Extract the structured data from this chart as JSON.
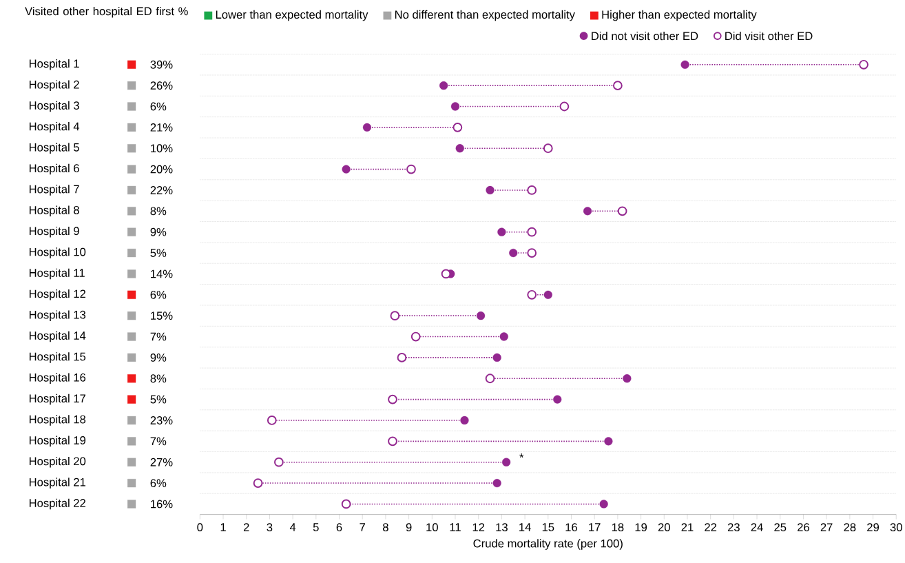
{
  "chart_data": [
    {
      "type": "other",
      "title": "Visited other hospital ED first %",
      "categories": [
        "Hospital 1",
        "Hospital 2",
        "Hospital 3",
        "Hospital 4",
        "Hospital 5",
        "Hospital 6",
        "Hospital 7",
        "Hospital 8",
        "Hospital 9",
        "Hospital 10",
        "Hospital 11",
        "Hospital 12",
        "Hospital 13",
        "Hospital 14",
        "Hospital 15",
        "Hospital 16",
        "Hospital 17",
        "Hospital 18",
        "Hospital 19",
        "Hospital 20",
        "Hospital 21",
        "Hospital 22"
      ],
      "series": [
        {
          "name": "Lower than expected mortality",
          "color": "#1aa84a",
          "values": [
            null,
            null,
            null,
            null,
            null,
            null,
            null,
            null,
            null,
            null,
            null,
            null,
            null,
            null,
            null,
            null,
            null,
            null,
            null,
            null,
            null,
            null
          ],
          "value_labels": [
            null,
            null,
            null,
            null,
            null,
            null,
            null,
            null,
            null,
            null,
            null,
            null,
            null,
            null,
            null,
            null,
            null,
            null,
            null,
            null,
            null,
            null
          ]
        },
        {
          "name": "No different than expected mortality",
          "color": "#a6a6a6",
          "values": [
            null,
            26,
            6,
            21,
            10,
            20,
            22,
            8,
            9,
            5,
            14,
            null,
            15,
            7,
            9,
            null,
            null,
            23,
            7,
            27,
            6,
            16
          ],
          "value_labels": [
            null,
            "26%",
            "6%",
            "21%",
            "10%",
            "20%",
            "22%",
            "8%",
            "9%",
            "5%",
            "14%",
            null,
            "15%",
            "7%",
            "9%",
            null,
            null,
            "23%",
            "7%",
            "27%",
            "6%",
            "16%"
          ]
        },
        {
          "name": "Higher than expected mortality",
          "color": "#f01a1a",
          "values": [
            39,
            null,
            null,
            null,
            null,
            null,
            null,
            null,
            null,
            null,
            null,
            6,
            null,
            null,
            null,
            8,
            5,
            null,
            null,
            null,
            null,
            null
          ],
          "value_labels": [
            "39%",
            null,
            null,
            null,
            null,
            null,
            null,
            null,
            null,
            null,
            null,
            "6%",
            null,
            null,
            null,
            "8%",
            "5%",
            null,
            null,
            null,
            null,
            null
          ]
        }
      ],
      "legend": "top right"
    },
    {
      "type": "scatter",
      "orientation": "horizontal",
      "xlabel": "Crude mortality rate (per 100)",
      "categories": [
        "Hospital 1",
        "Hospital 2",
        "Hospital 3",
        "Hospital 4",
        "Hospital 5",
        "Hospital 6",
        "Hospital 7",
        "Hospital 8",
        "Hospital 9",
        "Hospital 10",
        "Hospital 11",
        "Hospital 12",
        "Hospital 13",
        "Hospital 14",
        "Hospital 15",
        "Hospital 16",
        "Hospital 17",
        "Hospital 18",
        "Hospital 19",
        "Hospital 20",
        "Hospital 21",
        "Hospital 22"
      ],
      "series": [
        {
          "name": "Did not visit other ED",
          "color": "#93278f",
          "values": [
            20.9,
            10.5,
            11.0,
            7.2,
            11.2,
            6.3,
            12.5,
            16.7,
            13.0,
            13.5,
            10.8,
            15.0,
            12.1,
            13.1,
            12.8,
            18.4,
            15.4,
            11.4,
            17.6,
            13.2,
            12.8,
            17.4
          ]
        },
        {
          "name": "Did visit other ED",
          "color": "#93278f",
          "values": [
            28.6,
            18.0,
            15.7,
            11.1,
            15.0,
            9.1,
            14.3,
            18.2,
            14.3,
            14.3,
            10.6,
            14.3,
            8.4,
            9.3,
            8.7,
            12.5,
            8.3,
            3.1,
            8.3,
            3.4,
            2.5,
            6.3
          ]
        }
      ],
      "marker": "circle",
      "line_style": "dotted",
      "grid": "y",
      "legend": "top right",
      "tick_labels": "x",
      "xlim": [
        0,
        30
      ],
      "xticks": [
        0,
        1,
        2,
        3,
        4,
        5,
        6,
        7,
        8,
        9,
        10,
        11,
        12,
        13,
        14,
        15,
        16,
        17,
        18,
        19,
        20,
        21,
        22,
        23,
        24,
        25,
        26,
        27,
        28,
        29,
        30
      ],
      "annotations": [
        {
          "text": "*",
          "x": 13.2,
          "y": "Hospital 20"
        }
      ]
    }
  ]
}
